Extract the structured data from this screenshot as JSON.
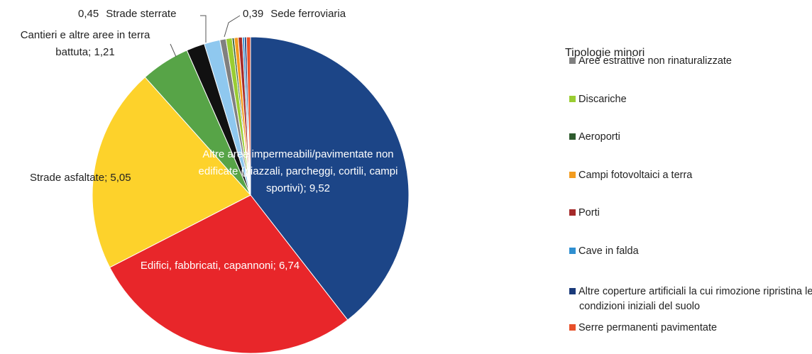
{
  "chart_data": {
    "type": "pie",
    "categories": [
      "Altre aree impermeabili/pavimentate non edificate (piazzali, parcheggi, cortili, campi sportivi)",
      "Edifici, fabbricati, capannoni",
      "Strade asfaltate",
      "Cantieri e altre aree in terra battuta",
      "Strade sterrate",
      "Sede ferroviaria",
      "Aree estrattive non rinaturalizzate",
      "Discariche",
      "Aeroporti",
      "Campi fotovoltaici a terra",
      "Porti",
      "Cave in falda",
      "Altre coperture artificiali la cui rimozione ripristina le condizioni iniziali del suolo",
      "Serre permanenti pavimentate"
    ],
    "values": [
      9.52,
      6.74,
      5.05,
      1.21,
      0.45,
      0.39,
      0.15,
      0.15,
      0.05,
      0.1,
      0.1,
      0.05,
      0.05,
      0.1
    ],
    "value_labels": [
      "9,52",
      "6,74",
      "5,05",
      "1,21",
      "0,45",
      "0,39",
      null,
      null,
      null,
      null,
      null,
      null,
      null,
      null
    ],
    "colors": [
      "#1c4587",
      "#e8262a",
      "#fdd22b",
      "#57a447",
      "#111111",
      "#8fc8ef",
      "#808080",
      "#9acd32",
      "#2e5b2e",
      "#f39c1f",
      "#a52a2a",
      "#2f8fd0",
      "#1a3a7a",
      "#e8502a"
    ],
    "label_separator": "; ",
    "legend_title": "Tipologie minori"
  }
}
